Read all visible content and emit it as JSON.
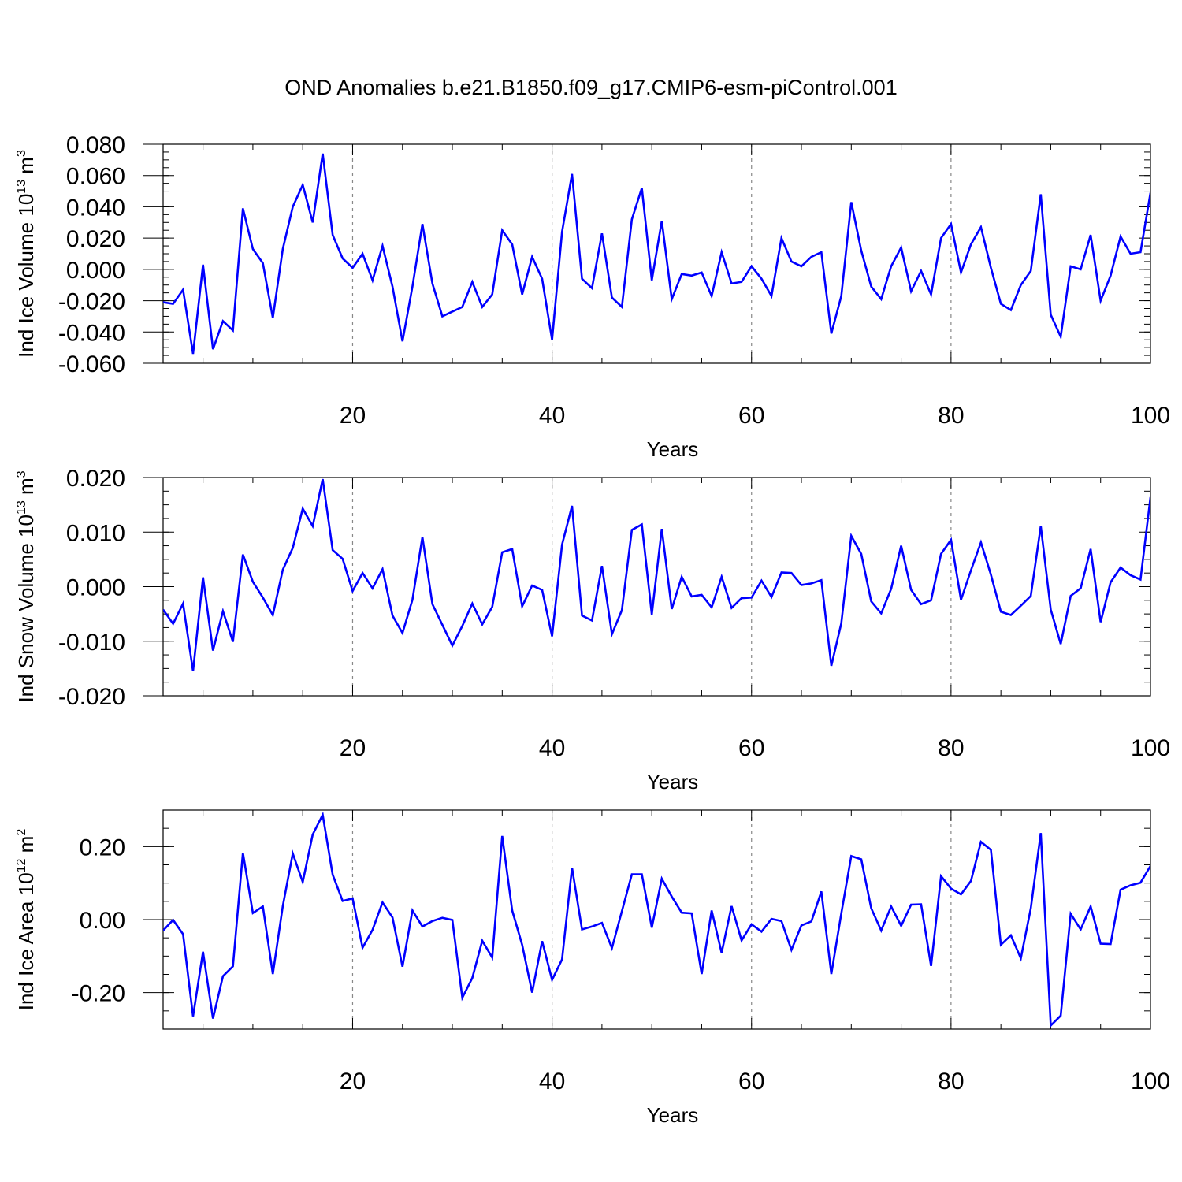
{
  "title": "OND Anomalies b.e21.B1850.f09_g17.CMIP6-esm-piControl.001",
  "line_color": "#0000ff",
  "chart_data": [
    {
      "type": "line",
      "ylabel": "Ind Ice Volume 10",
      "ylabel_sup": "13",
      "ylabel_unit": " m",
      "ylabel_unit_sup": "3",
      "xlabel": "Years",
      "xlim": [
        1,
        100
      ],
      "ylim": [
        -0.06,
        0.08
      ],
      "grid": "dashed vertical at x ticks",
      "xticks": [
        20,
        40,
        60,
        80,
        100
      ],
      "xtick_labels": [
        "20",
        "40",
        "60",
        "80",
        "100"
      ],
      "yticks": [
        -0.06,
        -0.04,
        -0.02,
        0.0,
        0.02,
        0.04,
        0.06,
        0.08
      ],
      "ytick_labels": [
        "-0.060",
        "-0.040",
        "-0.020",
        "0.000",
        "0.020",
        "0.040",
        "0.060",
        "0.080"
      ],
      "series": [
        {
          "values": [
            -0.021,
            -0.022,
            -0.013,
            -0.054,
            0.003,
            -0.051,
            -0.033,
            -0.039,
            0.039,
            0.013,
            0.004,
            -0.031,
            0.013,
            0.04,
            0.054,
            0.03,
            0.074,
            0.022,
            0.007,
            0.001,
            0.01,
            -0.007,
            0.015,
            -0.011,
            -0.046,
            -0.011,
            0.029,
            -0.009,
            -0.03,
            -0.027,
            -0.024,
            -0.008,
            -0.024,
            -0.016,
            0.025,
            0.016,
            -0.016,
            0.008,
            -0.006,
            -0.045,
            0.024,
            0.061,
            -0.006,
            -0.012,
            0.023,
            -0.018,
            -0.024,
            0.032,
            0.052,
            -0.007,
            0.031,
            -0.019,
            -0.003,
            -0.004,
            -0.002,
            -0.017,
            0.011,
            -0.009,
            -0.008,
            0.002,
            -0.006,
            -0.017,
            0.02,
            0.005,
            0.002,
            0.008,
            0.011,
            -0.041,
            -0.017,
            0.043,
            0.012,
            -0.011,
            -0.019,
            0.002,
            0.014,
            -0.014,
            -0.001,
            -0.016,
            0.02,
            0.029,
            -0.002,
            0.016,
            0.027,
            0.001,
            -0.022,
            -0.026,
            -0.01,
            -0.001,
            0.048,
            -0.029,
            -0.043,
            0.002,
            0.0,
            0.022,
            -0.02,
            -0.004,
            0.021,
            0.01,
            0.011,
            0.049
          ]
        }
      ]
    },
    {
      "type": "line",
      "ylabel": "Ind Snow Volume 10",
      "ylabel_sup": "13",
      "ylabel_unit": " m",
      "ylabel_unit_sup": "3",
      "xlabel": "Years",
      "xlim": [
        1,
        100
      ],
      "ylim": [
        -0.02,
        0.02
      ],
      "grid": "dashed vertical at x ticks",
      "xticks": [
        20,
        40,
        60,
        80,
        100
      ],
      "xtick_labels": [
        "20",
        "40",
        "60",
        "80",
        "100"
      ],
      "yticks": [
        -0.02,
        -0.01,
        0.0,
        0.01,
        0.02
      ],
      "ytick_labels": [
        "-0.020",
        "-0.010",
        "0.000",
        "0.010",
        "0.020"
      ],
      "series": [
        {
          "values": [
            -0.0042,
            -0.0068,
            -0.0031,
            -0.0155,
            0.0017,
            -0.0117,
            -0.0045,
            -0.0101,
            0.0059,
            0.0009,
            -0.002,
            -0.0052,
            0.0031,
            0.0071,
            0.0143,
            0.0111,
            0.0197,
            0.0067,
            0.0051,
            -0.0008,
            0.0025,
            -0.0003,
            0.0032,
            -0.0053,
            -0.0085,
            -0.0024,
            0.0091,
            -0.0032,
            -0.007,
            -0.0108,
            -0.0072,
            -0.0031,
            -0.0069,
            -0.0037,
            0.0063,
            0.0069,
            -0.0036,
            0.0002,
            -0.0006,
            -0.0091,
            0.0077,
            0.0148,
            -0.0053,
            -0.0062,
            0.0038,
            -0.0087,
            -0.0043,
            0.0104,
            0.0114,
            -0.0051,
            0.0106,
            -0.0041,
            0.0018,
            -0.0018,
            -0.0015,
            -0.0038,
            0.0018,
            -0.0039,
            -0.0021,
            -0.002,
            0.0011,
            -0.0019,
            0.0026,
            0.0025,
            0.0003,
            0.0006,
            0.0012,
            -0.0145,
            -0.0067,
            0.0093,
            0.006,
            -0.0027,
            -0.0049,
            -0.0004,
            0.0075,
            -0.0006,
            -0.0032,
            -0.0025,
            0.006,
            0.0086,
            -0.0024,
            0.003,
            0.0081,
            0.0022,
            -0.0046,
            -0.0052,
            -0.0035,
            -0.0017,
            0.0111,
            -0.0042,
            -0.0105,
            -0.0017,
            -0.0003,
            0.0069,
            -0.0065,
            0.0008,
            0.0035,
            0.0021,
            0.0013,
            0.0164
          ]
        }
      ]
    },
    {
      "type": "line",
      "ylabel": "Ind Ice Area 10",
      "ylabel_sup": "12",
      "ylabel_unit": " m",
      "ylabel_unit_sup": "2",
      "xlabel": "Years",
      "xlim": [
        1,
        100
      ],
      "ylim": [
        -0.3,
        0.3
      ],
      "grid": "dashed vertical at x ticks",
      "xticks": [
        20,
        40,
        60,
        80,
        100
      ],
      "xtick_labels": [
        "20",
        "40",
        "60",
        "80",
        "100"
      ],
      "yticks": [
        -0.2,
        0.0,
        0.2
      ],
      "ytick_labels": [
        "-0.20",
        "0.00",
        "0.20"
      ],
      "series": [
        {
          "values": [
            -0.03,
            -0.001,
            -0.04,
            -0.265,
            -0.088,
            -0.271,
            -0.155,
            -0.128,
            0.183,
            0.018,
            0.036,
            -0.149,
            0.037,
            0.181,
            0.103,
            0.233,
            0.287,
            0.123,
            0.051,
            0.058,
            -0.077,
            -0.028,
            0.047,
            0.006,
            -0.129,
            0.025,
            -0.019,
            -0.004,
            0.005,
            -0.001,
            -0.214,
            -0.16,
            -0.058,
            -0.104,
            0.229,
            0.025,
            -0.069,
            -0.2,
            -0.059,
            -0.165,
            -0.109,
            0.142,
            -0.027,
            -0.019,
            -0.009,
            -0.078,
            0.023,
            0.124,
            0.124,
            -0.022,
            0.112,
            0.063,
            0.019,
            0.017,
            -0.149,
            0.025,
            -0.091,
            0.037,
            -0.057,
            -0.013,
            -0.033,
            0.002,
            -0.004,
            -0.083,
            -0.016,
            -0.005,
            0.077,
            -0.149,
            0.017,
            0.174,
            0.165,
            0.031,
            -0.03,
            0.036,
            -0.017,
            0.041,
            0.042,
            -0.127,
            0.119,
            0.085,
            0.069,
            0.106,
            0.213,
            0.191,
            -0.069,
            -0.043,
            -0.106,
            0.031,
            0.237,
            -0.29,
            -0.263,
            0.016,
            -0.027,
            0.036,
            -0.066,
            -0.067,
            0.082,
            0.094,
            0.101,
            0.147
          ]
        }
      ]
    }
  ]
}
